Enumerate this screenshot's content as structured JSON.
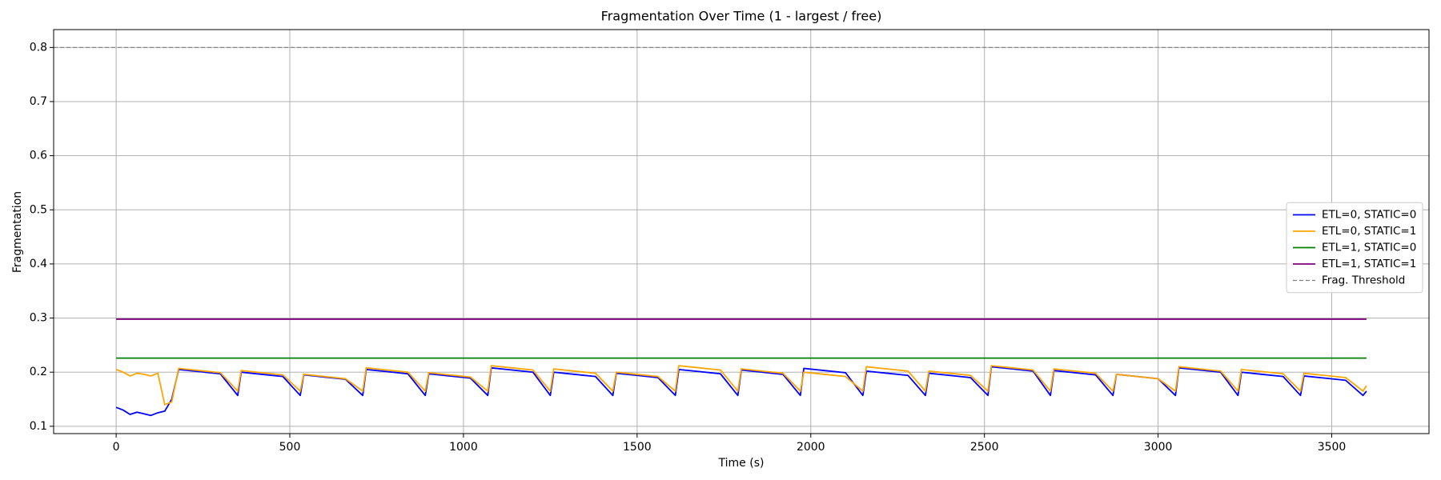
{
  "chart_data": {
    "type": "line",
    "title": "Fragmentation Over Time (1 - largest / free)",
    "xlabel": "Time (s)",
    "ylabel": "Fragmentation",
    "xlim": [
      -180,
      3780
    ],
    "ylim": [
      0.0865,
      0.833
    ],
    "xticks": [
      0,
      500,
      1000,
      1500,
      2000,
      2500,
      3000,
      3500
    ],
    "yticks": [
      0.1,
      0.2,
      0.3,
      0.4,
      0.5,
      0.6,
      0.7,
      0.8
    ],
    "grid": true,
    "legend": "center right",
    "x": [
      0,
      20,
      40,
      60,
      80,
      100,
      120,
      140,
      160,
      180,
      240,
      300,
      350,
      360,
      420,
      480,
      530,
      540,
      600,
      660,
      710,
      720,
      780,
      840,
      890,
      900,
      960,
      1020,
      1070,
      1080,
      1140,
      1200,
      1250,
      1260,
      1320,
      1380,
      1430,
      1440,
      1500,
      1560,
      1610,
      1620,
      1680,
      1740,
      1790,
      1800,
      1860,
      1920,
      1970,
      1980,
      2040,
      2100,
      2150,
      2160,
      2220,
      2280,
      2330,
      2340,
      2400,
      2460,
      2510,
      2520,
      2580,
      2640,
      2690,
      2700,
      2760,
      2820,
      2870,
      2880,
      2940,
      3000,
      3050,
      3060,
      3120,
      3180,
      3230,
      3240,
      3300,
      3360,
      3410,
      3420,
      3480,
      3540,
      3590,
      3600
    ],
    "series": [
      {
        "name": "ETL=0, STATIC=0",
        "color": "#0000ff",
        "values": [
          0.135,
          0.13,
          0.122,
          0.126,
          0.123,
          0.12,
          0.125,
          0.128,
          0.15,
          0.205,
          0.201,
          0.197,
          0.157,
          0.2,
          0.196,
          0.192,
          0.157,
          0.195,
          0.191,
          0.187,
          0.157,
          0.205,
          0.201,
          0.197,
          0.157,
          0.197,
          0.193,
          0.189,
          0.157,
          0.208,
          0.204,
          0.2,
          0.157,
          0.2,
          0.196,
          0.192,
          0.157,
          0.198,
          0.194,
          0.19,
          0.157,
          0.205,
          0.201,
          0.197,
          0.157,
          0.204,
          0.2,
          0.196,
          0.157,
          0.207,
          0.203,
          0.199,
          0.157,
          0.202,
          0.198,
          0.194,
          0.157,
          0.198,
          0.194,
          0.19,
          0.157,
          0.21,
          0.206,
          0.202,
          0.157,
          0.203,
          0.199,
          0.195,
          0.157,
          0.196,
          0.192,
          0.188,
          0.157,
          0.208,
          0.204,
          0.2,
          0.157,
          0.2,
          0.196,
          0.192,
          0.157,
          0.193,
          0.189,
          0.185,
          0.157,
          0.165
        ]
      },
      {
        "name": "ETL=0, STATIC=1",
        "color": "#ffa500",
        "values": [
          0.205,
          0.2,
          0.193,
          0.198,
          0.196,
          0.193,
          0.198,
          0.14,
          0.145,
          0.207,
          0.203,
          0.199,
          0.165,
          0.203,
          0.199,
          0.195,
          0.165,
          0.196,
          0.192,
          0.188,
          0.165,
          0.208,
          0.204,
          0.2,
          0.165,
          0.199,
          0.195,
          0.191,
          0.165,
          0.212,
          0.208,
          0.204,
          0.165,
          0.206,
          0.202,
          0.198,
          0.165,
          0.2,
          0.196,
          0.192,
          0.165,
          0.212,
          0.208,
          0.204,
          0.165,
          0.206,
          0.202,
          0.198,
          0.165,
          0.2,
          0.196,
          0.192,
          0.165,
          0.21,
          0.206,
          0.202,
          0.165,
          0.202,
          0.198,
          0.194,
          0.165,
          0.212,
          0.208,
          0.204,
          0.165,
          0.206,
          0.202,
          0.198,
          0.165,
          0.196,
          0.192,
          0.188,
          0.165,
          0.21,
          0.206,
          0.202,
          0.165,
          0.205,
          0.201,
          0.197,
          0.165,
          0.198,
          0.194,
          0.19,
          0.165,
          0.175
        ]
      },
      {
        "name": "ETL=1, STATIC=0",
        "color": "#008000",
        "x": [
          0,
          3600
        ],
        "values": [
          0.226,
          0.226
        ]
      },
      {
        "name": "ETL=1, STATIC=1",
        "color": "#800080",
        "x": [
          0,
          3600
        ],
        "values": [
          0.298,
          0.298
        ]
      }
    ],
    "threshold": {
      "name": "Frag. Threshold",
      "value": 0.8,
      "color": "#808080"
    }
  }
}
